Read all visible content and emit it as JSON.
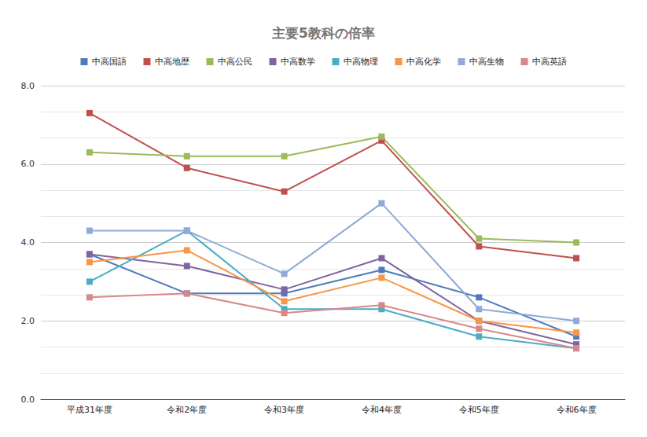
{
  "chart_data": {
    "type": "line",
    "title": "主要5教科の倍率",
    "categories": [
      "平成31年度",
      "令和2年度",
      "令和3年度",
      "令和4年度",
      "令和5年度",
      "令和6年度"
    ],
    "series": [
      {
        "name": "中高国語",
        "color": "#4f7bbd",
        "values": [
          3.7,
          2.7,
          2.7,
          3.3,
          2.6,
          1.6
        ]
      },
      {
        "name": "中高地歴",
        "color": "#c0504d",
        "values": [
          7.3,
          5.9,
          5.3,
          6.6,
          3.9,
          3.6
        ]
      },
      {
        "name": "中高公民",
        "color": "#9bbb59",
        "values": [
          6.3,
          6.2,
          6.2,
          6.7,
          4.1,
          4.0
        ]
      },
      {
        "name": "中高数学",
        "color": "#8064a2",
        "values": [
          3.7,
          3.4,
          2.8,
          3.6,
          2.0,
          1.4
        ]
      },
      {
        "name": "中高物理",
        "color": "#4bacc6",
        "values": [
          3.0,
          4.3,
          2.3,
          2.3,
          1.6,
          1.3
        ]
      },
      {
        "name": "中高化学",
        "color": "#f79646",
        "values": [
          3.5,
          3.8,
          2.5,
          3.1,
          2.0,
          1.7
        ]
      },
      {
        "name": "中高生物",
        "color": "#8eaad6",
        "values": [
          4.3,
          4.3,
          3.2,
          5.0,
          2.3,
          2.0
        ]
      },
      {
        "name": "中高英語",
        "color": "#d9888a",
        "values": [
          2.6,
          2.7,
          2.2,
          2.4,
          1.8,
          1.3
        ]
      }
    ],
    "ylim": [
      0,
      8
    ],
    "yticks": [
      {
        "value": 0,
        "label": "0.0"
      },
      {
        "value": 2,
        "label": "2.0"
      },
      {
        "value": 4,
        "label": "4.0"
      },
      {
        "value": 6,
        "label": "6.0"
      },
      {
        "value": 8,
        "label": "8.0"
      }
    ],
    "grid": true,
    "legend": "top",
    "marker": "square"
  }
}
